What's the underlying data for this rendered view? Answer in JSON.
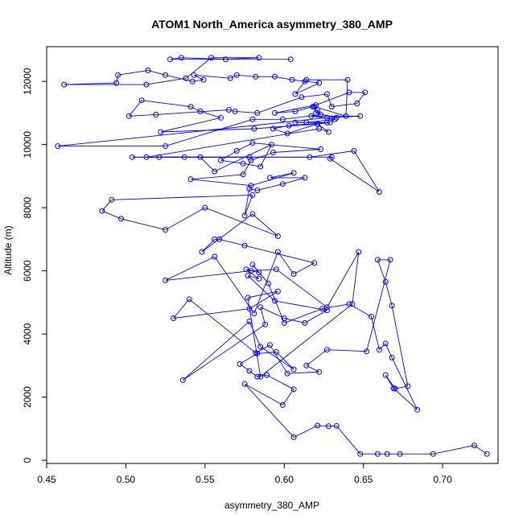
{
  "chart_data": {
    "type": "scatter",
    "title": "ATOM1 North_America asymmetry_380_AMP",
    "xlabel": "asymmetry_380_AMP",
    "ylabel": "Altitude (m)",
    "xlim": [
      0.45,
      0.735
    ],
    "ylim": [
      -100,
      13100
    ],
    "xticks": [
      0.45,
      0.5,
      0.55,
      0.6,
      0.65,
      0.7
    ],
    "xtick_labels": [
      "0.45",
      "0.50",
      "0.55",
      "0.60",
      "0.65",
      "0.70"
    ],
    "yticks": [
      0,
      2000,
      4000,
      6000,
      8000,
      10000,
      12000
    ],
    "ytick_labels": [
      "0",
      "2000",
      "4000",
      "6000",
      "8000",
      "10000",
      "12000"
    ],
    "grid": false,
    "marker": "open-circle",
    "connected": true,
    "series_color": "#0000ff",
    "series": [
      {
        "x": [
          0.728,
          0.72,
          0.694,
          0.673,
          0.665,
          0.659,
          0.648,
          0.633,
          0.628,
          0.621,
          0.606,
          0.575,
          0.599,
          0.606,
          0.589,
          0.583,
          0.578,
          0.572,
          0.583,
          0.595,
          0.606,
          0.585,
          0.578,
          0.536,
          0.588,
          0.585,
          0.6,
          0.613,
          0.627,
          0.594,
          0.577,
          0.584,
          0.576,
          0.584,
          0.58,
          0.59,
          0.6,
          0.624,
          0.641,
          0.655,
          0.66,
          0.664,
          0.668,
          0.684,
          0.669,
          0.664,
          0.67,
          0.678,
          0.668,
          0.664,
          0.659,
          0.667,
          0.652,
          0.627,
          0.614,
          0.622,
          0.602,
          0.591,
          0.582,
          0.54,
          0.53,
          0.578,
          0.596,
          0.577,
          0.585,
          0.643,
          0.647,
          0.627,
          0.595,
          0.579,
          0.525,
          0.556,
          0.581,
          0.596,
          0.606,
          0.619,
          0.575,
          0.559,
          0.556,
          0.548,
          0.58,
          0.596,
          0.55,
          0.525,
          0.497,
          0.485,
          0.491,
          0.58,
          0.575,
          0.578,
          0.583,
          0.599,
          0.613,
          0.591,
          0.606,
          0.579,
          0.541,
          0.574,
          0.579,
          0.593,
          0.623,
          0.58,
          0.57,
          0.56,
          0.574,
          0.585,
          0.592,
          0.556,
          0.547,
          0.521,
          0.616,
          0.644,
          0.66,
          0.629,
          0.63,
          0.504,
          0.578,
          0.537,
          0.513,
          0.622,
          0.628,
          0.621,
          0.602,
          0.593,
          0.603,
          0.627,
          0.607,
          0.614,
          0.632,
          0.617,
          0.648,
          0.627,
          0.457,
          0.525,
          0.58,
          0.599,
          0.623,
          0.621,
          0.618,
          0.607,
          0.594,
          0.62,
          0.641,
          0.651,
          0.646,
          0.63,
          0.627,
          0.611,
          0.583,
          0.569,
          0.565,
          0.519,
          0.502,
          0.51,
          0.541,
          0.547,
          0.56,
          0.522,
          0.581,
          0.621,
          0.629,
          0.633,
          0.62,
          0.619,
          0.639,
          0.64,
          0.614,
          0.613,
          0.607,
          0.622,
          0.605,
          0.594,
          0.582,
          0.57,
          0.566,
          0.543,
          0.549,
          0.542,
          0.525,
          0.514,
          0.495,
          0.494,
          0.461,
          0.513,
          0.538,
          0.554,
          0.584,
          0.563,
          0.535,
          0.528,
          0.604
        ],
        "y": [
          200,
          470,
          200,
          200,
          200,
          200,
          200,
          1090,
          1080,
          1100,
          730,
          2420,
          1750,
          2250,
          2700,
          2650,
          2830,
          3050,
          3380,
          3430,
          2880,
          3600,
          4400,
          2540,
          4300,
          4850,
          4500,
          4350,
          4750,
          5050,
          5850,
          5750,
          6050,
          5950,
          6200,
          5600,
          4350,
          4800,
          4950,
          4550,
          3500,
          3700,
          3250,
          1600,
          2280,
          2700,
          2270,
          2350,
          4900,
          5650,
          6350,
          6350,
          3450,
          3500,
          3000,
          2800,
          2750,
          3650,
          3400,
          5100,
          4500,
          4800,
          5350,
          5150,
          2650,
          4950,
          6600,
          4850,
          6050,
          6000,
          5700,
          6450,
          4650,
          6600,
          5900,
          6250,
          6800,
          7000,
          7000,
          6600,
          7800,
          7100,
          8000,
          7300,
          7650,
          7900,
          8250,
          8400,
          7750,
          8600,
          8550,
          8750,
          8950,
          8950,
          9100,
          8700,
          8900,
          9050,
          9500,
          9750,
          9850,
          10050,
          9800,
          9500,
          9400,
          9300,
          10000,
          9150,
          9600,
          9600,
          9600,
          9800,
          8500,
          9550,
          9600,
          9600,
          9600,
          9600,
          9600,
          10500,
          10400,
          10650,
          10350,
          10500,
          10600,
          10700,
          10700,
          10700,
          10800,
          10900,
          10900,
          10850,
          9950,
          9950,
          10800,
          10800,
          10950,
          11100,
          11200,
          11050,
          11000,
          11250,
          11650,
          11650,
          11300,
          11200,
          11600,
          11500,
          11000,
          11050,
          11100,
          10950,
          10900,
          11400,
          11200,
          11050,
          10850,
          10400,
          10500,
          10650,
          10700,
          10850,
          11000,
          11200,
          10900,
          12050,
          12050,
          12000,
          11600,
          11950,
          12050,
          12150,
          12150,
          12200,
          12100,
          12200,
          12050,
          12000,
          12200,
          12350,
          12200,
          11950,
          11900,
          11900,
          12100,
          12750,
          12750,
          12700,
          12750,
          12700,
          12700
        ]
      }
    ]
  }
}
